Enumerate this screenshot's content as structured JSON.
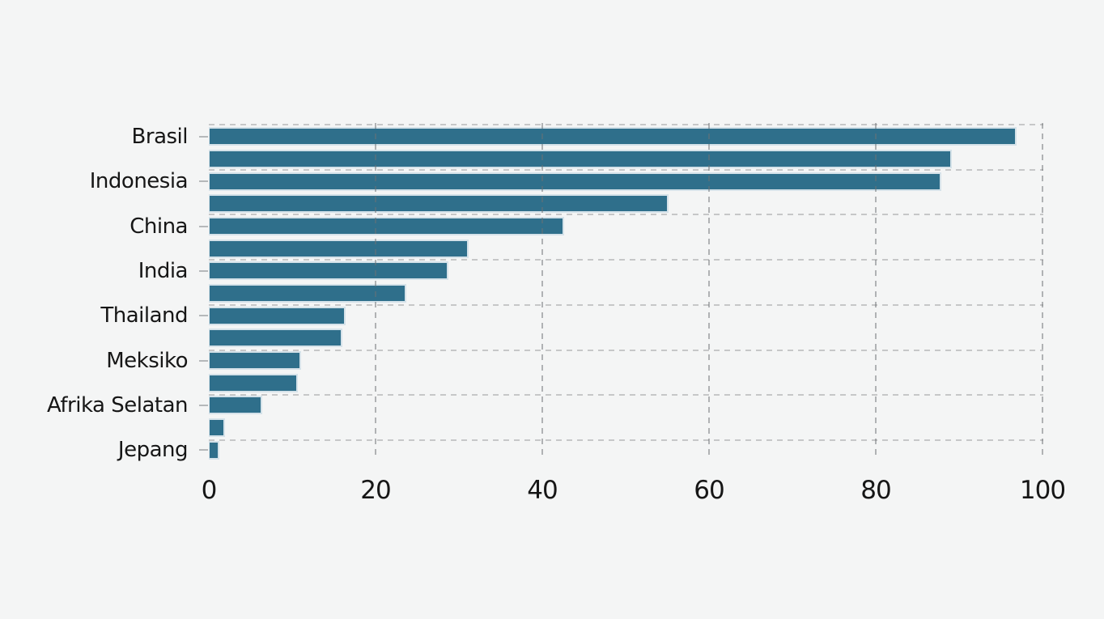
{
  "page": {
    "background_color": "#f4f5f5",
    "title": ""
  },
  "chart_data": {
    "type": "bar",
    "orientation": "horizontal",
    "title": "",
    "xlabel": "",
    "ylabel": "",
    "xlim": [
      0,
      100
    ],
    "x_ticks": [
      0,
      20,
      40,
      60,
      80,
      100
    ],
    "grid": "dashed gridlines, vertical at x-ticks and horizontal between category pairs",
    "legend": "none",
    "bar_color": "#2f6f8b",
    "bar_edge_color": "#d5e2e9",
    "grid_color": "#c6c7c8",
    "categories": [
      "Brasil",
      "Indonesia",
      "China",
      "India",
      "Thailand",
      "Meksiko",
      "Afrika Selatan",
      "Jepang"
    ],
    "series": [
      {
        "name": "labeled-bar",
        "values": [
          96.9,
          87.9,
          42.6,
          28.7,
          16.4,
          11.1,
          6.4,
          1.3
        ]
      },
      {
        "name": "companion-bar",
        "values": [
          89.1,
          55.1,
          31.2,
          23.7,
          16.0,
          10.7,
          1.9,
          null
        ]
      }
    ],
    "bars_top_to_bottom": [
      {
        "label": "Brasil",
        "value": 96.9
      },
      {
        "label": "",
        "value": 89.1
      },
      {
        "label": "Indonesia",
        "value": 87.9
      },
      {
        "label": "",
        "value": 55.1
      },
      {
        "label": "China",
        "value": 42.6
      },
      {
        "label": "",
        "value": 31.2
      },
      {
        "label": "India",
        "value": 28.7
      },
      {
        "label": "",
        "value": 23.7
      },
      {
        "label": "Thailand",
        "value": 16.4
      },
      {
        "label": "",
        "value": 16.0
      },
      {
        "label": "Meksiko",
        "value": 11.1
      },
      {
        "label": "",
        "value": 10.7
      },
      {
        "label": "Afrika Selatan",
        "value": 6.4
      },
      {
        "label": "",
        "value": 1.9
      },
      {
        "label": "Jepang",
        "value": 1.3
      }
    ]
  }
}
